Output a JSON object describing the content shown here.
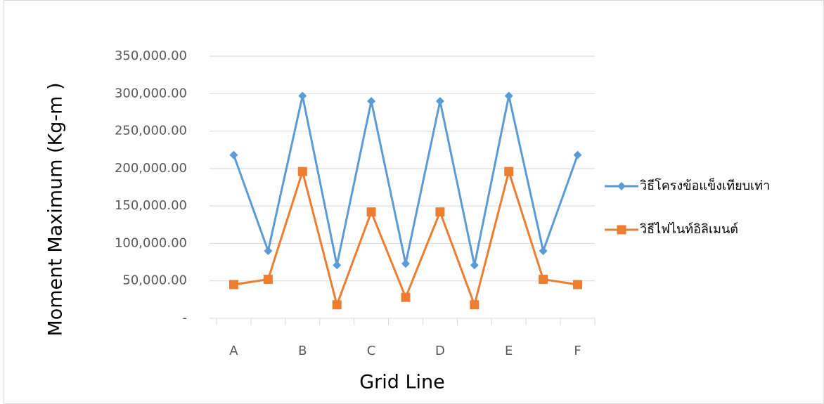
{
  "chart_data": {
    "type": "line",
    "x_label": "Grid Line",
    "y_label": "Moment  Maximum (Kg-m )",
    "categories": [
      "A",
      null,
      "B",
      null,
      "C",
      null,
      "D",
      null,
      "E",
      null,
      "F"
    ],
    "series": [
      {
        "name": "วิธีโครงข้อแข็งเทียบเท่า",
        "color": "#5b9bd5",
        "marker": "diamond",
        "values": [
          218000,
          90000,
          297000,
          71000,
          290000,
          73000,
          290000,
          71000,
          297000,
          90000,
          218000
        ]
      },
      {
        "name": "วิธีไฟไนท์อิลิเมนต์",
        "color": "#ed7d31",
        "marker": "square",
        "values": [
          45000,
          52000,
          196000,
          18000,
          142000,
          28000,
          142000,
          18000,
          196000,
          52000,
          45000
        ]
      }
    ],
    "ylim": [
      0,
      350000
    ],
    "yticks": [
      {
        "value": 0,
        "label": "-"
      },
      {
        "value": 50000,
        "label": "50,000.00"
      },
      {
        "value": 100000,
        "label": "100,000.00"
      },
      {
        "value": 150000,
        "label": "150,000.00"
      },
      {
        "value": 200000,
        "label": "200,000.00"
      },
      {
        "value": 250000,
        "label": "250,000.00"
      },
      {
        "value": 300000,
        "label": "300,000.00"
      },
      {
        "value": 350000,
        "label": "350,000.00"
      }
    ],
    "grid": true,
    "legend": "right"
  }
}
